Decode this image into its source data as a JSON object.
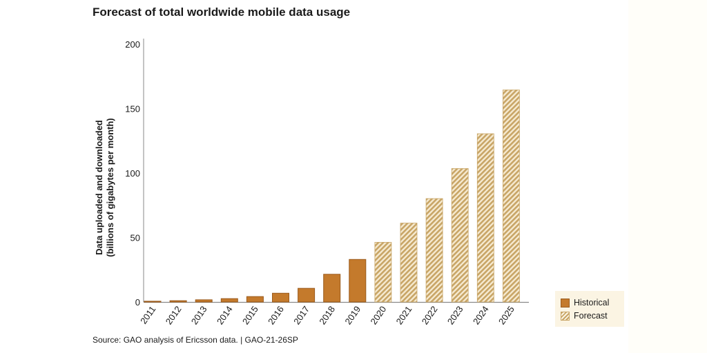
{
  "chart_data": {
    "type": "bar",
    "title": "Forecast of total worldwide mobile data usage",
    "ylabel_line1": "Data uploaded and downloaded",
    "ylabel_line2": "(billions of gigabytes per month)",
    "xlabel": "",
    "ylim": [
      0,
      200
    ],
    "yticks": [
      0,
      50,
      100,
      150,
      200
    ],
    "categories": [
      "2011",
      "2012",
      "2013",
      "2014",
      "2015",
      "2016",
      "2017",
      "2018",
      "2019",
      "2020",
      "2021",
      "2022",
      "2023",
      "2024",
      "2025"
    ],
    "values": [
      0.6,
      1.0,
      1.7,
      2.6,
      4.2,
      6.8,
      10.6,
      21.5,
      33.0,
      46.3,
      61.2,
      80.2,
      103.5,
      130.5,
      164.5
    ],
    "series_type": [
      "historical",
      "historical",
      "historical",
      "historical",
      "historical",
      "historical",
      "historical",
      "historical",
      "historical",
      "forecast",
      "forecast",
      "forecast",
      "forecast",
      "forecast",
      "forecast"
    ],
    "legend": {
      "position": "bottom-right",
      "historical": "Historical",
      "forecast": "Forecast"
    },
    "colors": {
      "historical": "#c47a2c",
      "historical_border": "#9a5a1c",
      "forecast": "#c8a566",
      "axis": "#888888"
    }
  },
  "source": "Source: GAO analysis of Ericsson data.  |  GAO-21-26SP"
}
